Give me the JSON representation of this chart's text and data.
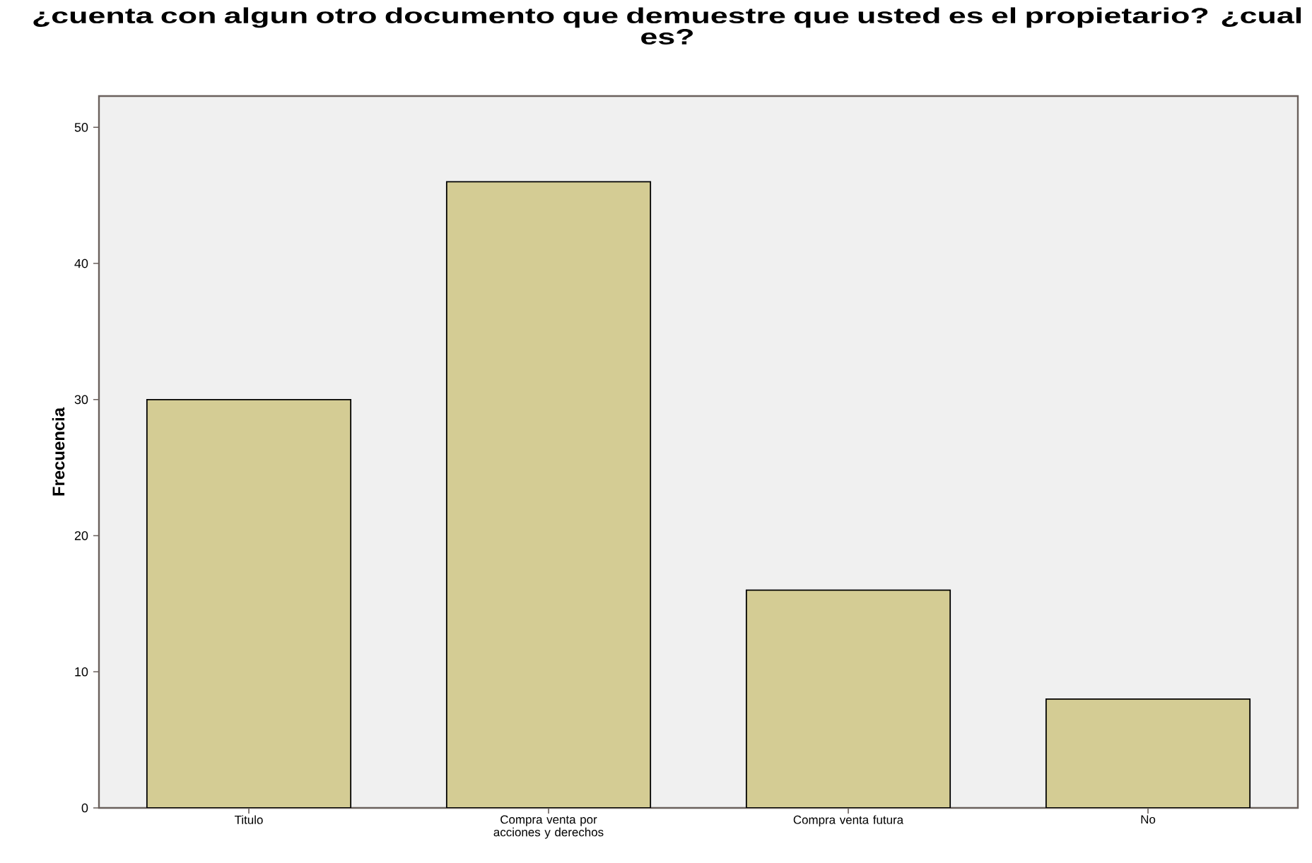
{
  "chart_data": {
    "type": "bar",
    "title": "¿cuenta con algun otro documento que demuestre que usted es el propietario? ¿cual es?",
    "ylabel": "Frecuencia",
    "categories": [
      "Titulo",
      "Compra venta por acciones y derechos",
      "Compra venta futura",
      "No"
    ],
    "values": [
      30,
      46,
      16,
      8
    ],
    "color": "#d4cc94",
    "ylim": [
      0,
      52.3
    ],
    "yticks": [
      0,
      10,
      20,
      30,
      40,
      50
    ],
    "grid": false
  }
}
